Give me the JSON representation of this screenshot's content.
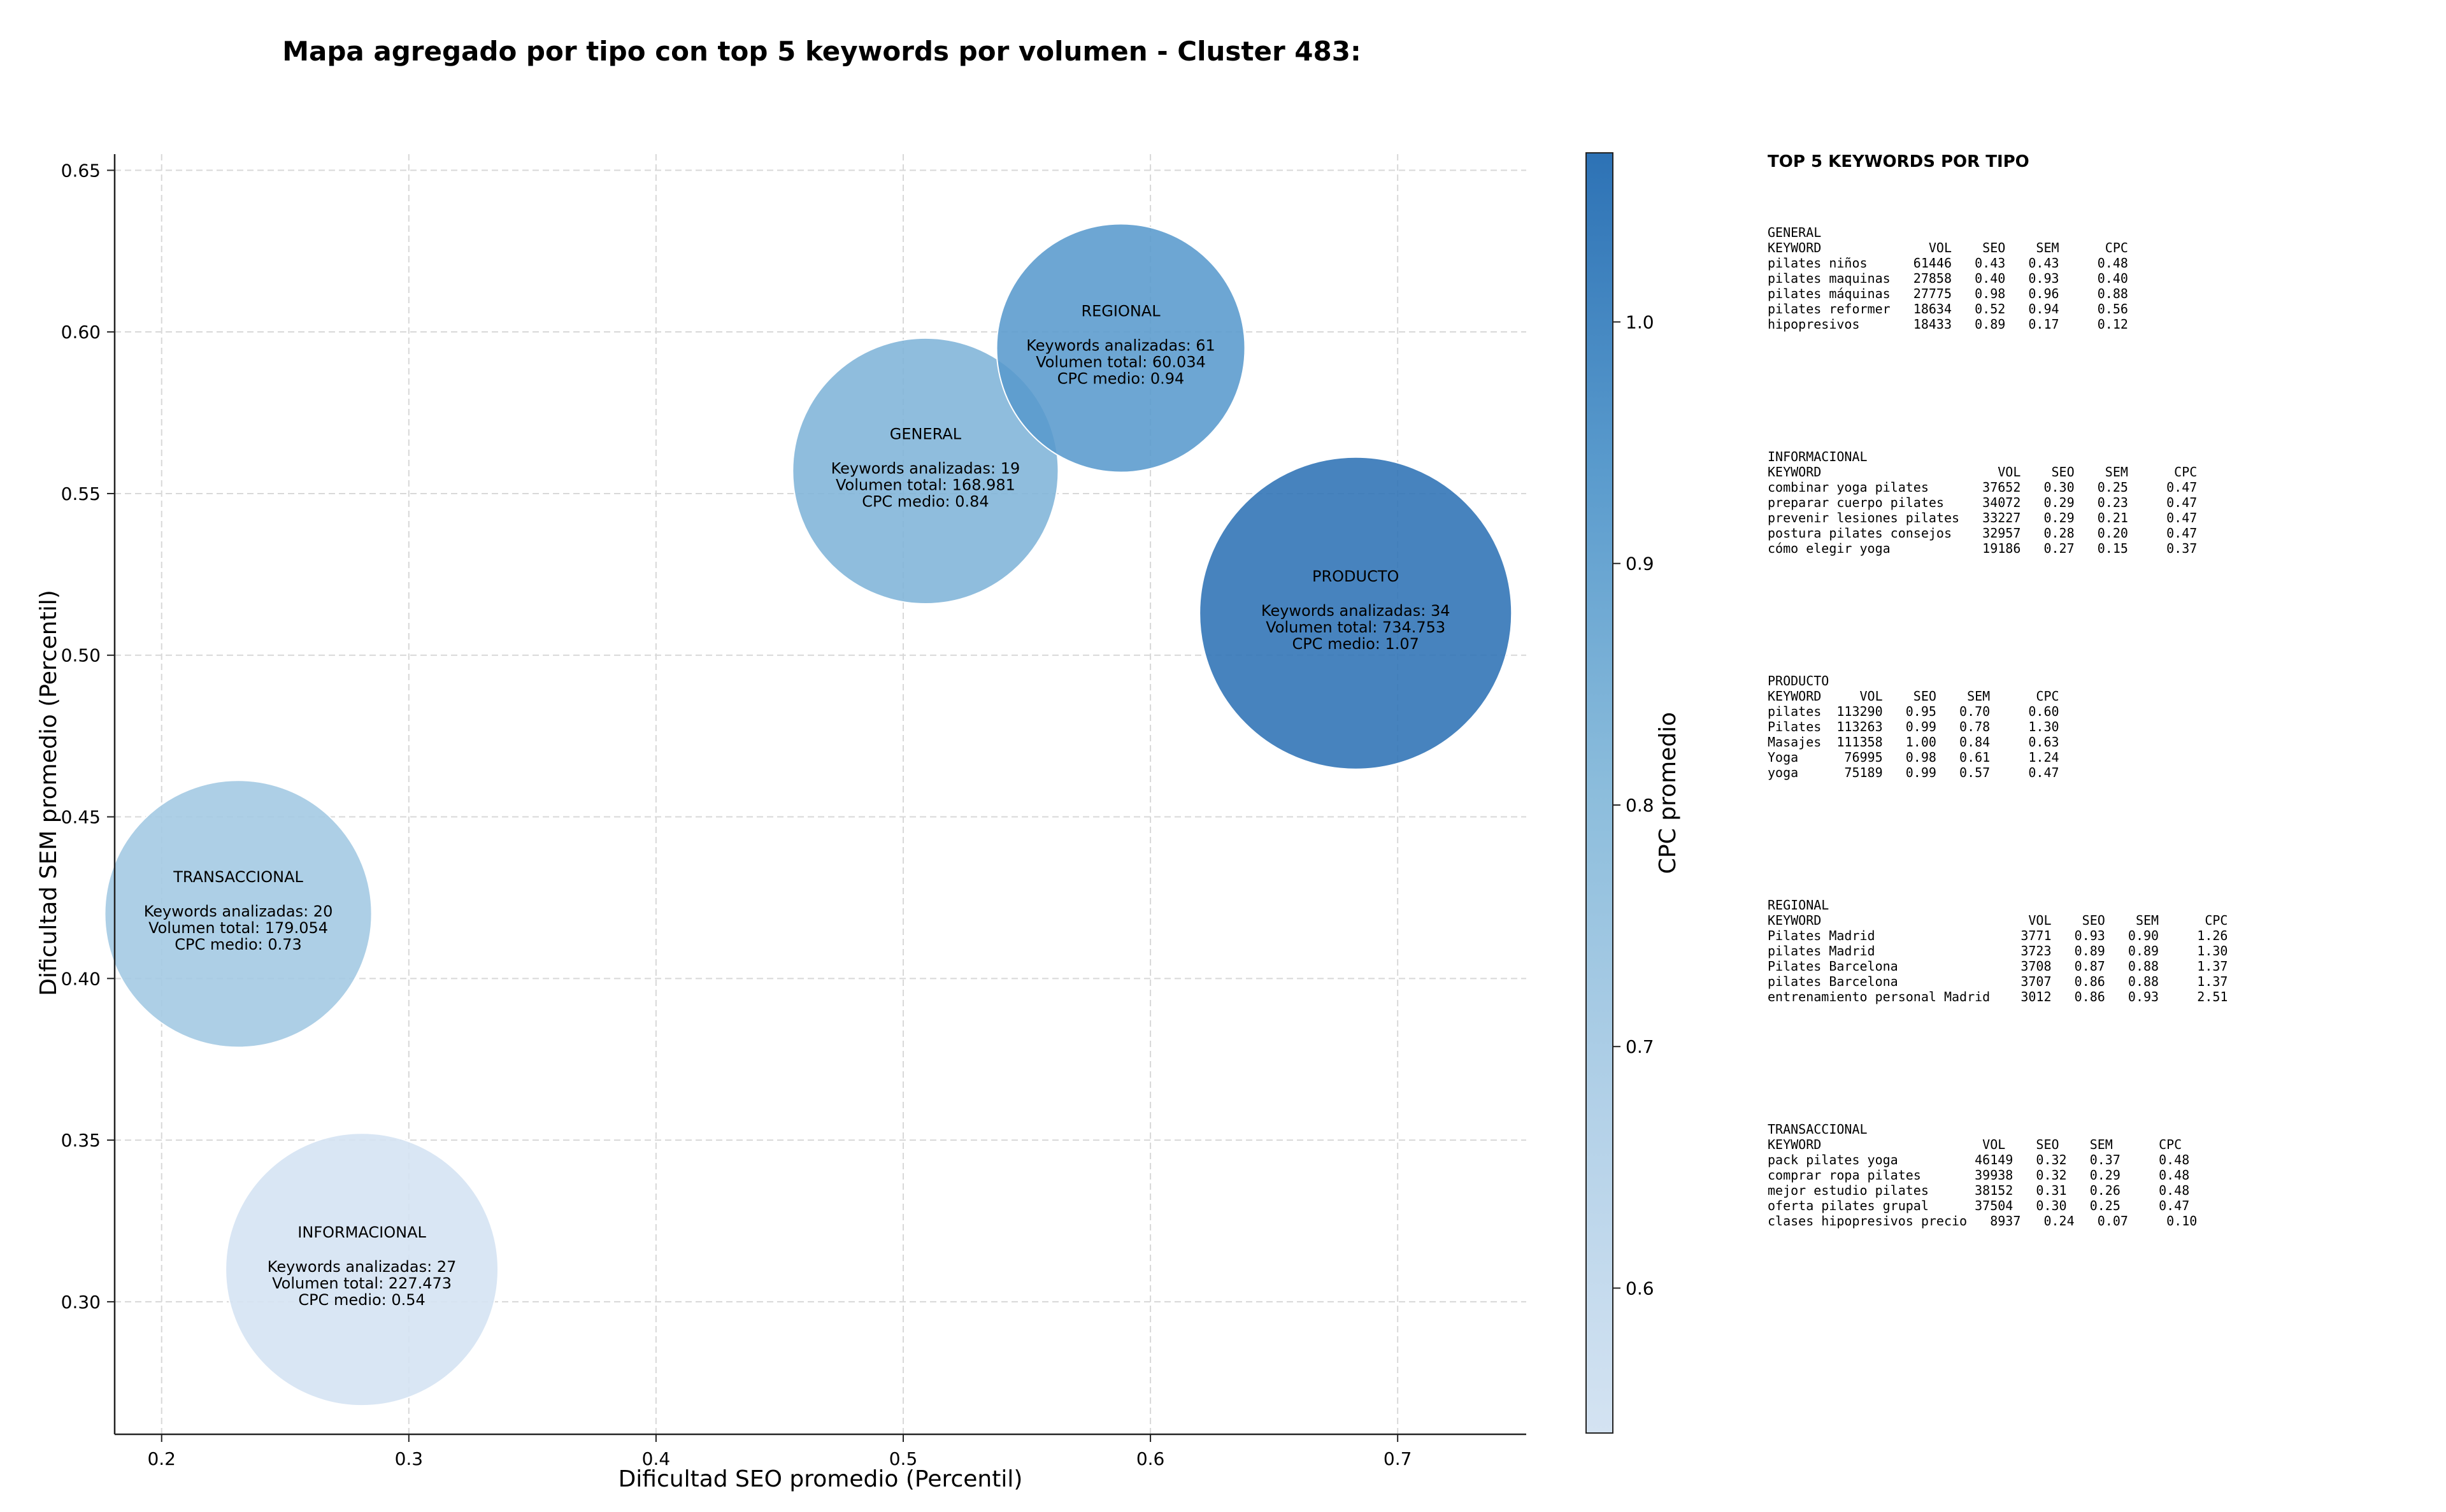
{
  "chart_data": {
    "type": "scatter",
    "title": "Mapa agregado por tipo con top 5 keywords por volumen - Cluster 483:",
    "xlabel": "Dificultad SEO promedio (Percentil)",
    "ylabel": "Dificultad SEM promedio (Percentil)",
    "xlim": [
      0.181,
      0.752
    ],
    "ylim": [
      0.259,
      0.655
    ],
    "x_ticks": [
      "0.2",
      "0.3",
      "0.4",
      "0.5",
      "0.6",
      "0.7"
    ],
    "y_ticks": [
      "0.30",
      "0.35",
      "0.40",
      "0.45",
      "0.50",
      "0.55",
      "0.60",
      "0.65"
    ],
    "grid": true,
    "colorbar": {
      "label": "CPC promedio",
      "range": [
        0.54,
        1.07
      ],
      "ticks": [
        "0.6",
        "0.7",
        "0.8",
        "0.9",
        "1.0"
      ],
      "colormap": "Blues"
    },
    "points": [
      {
        "name": "GENERAL",
        "x": 0.509,
        "y": 0.557,
        "keywords": 19,
        "volume": 168981,
        "cpc": 0.84,
        "lines": [
          "Keywords analizadas: 19",
          "Volumen total: 168.981",
          "CPC medio: 0.84"
        ]
      },
      {
        "name": "INFORMACIONAL",
        "x": 0.281,
        "y": 0.31,
        "keywords": 27,
        "volume": 227473,
        "cpc": 0.54,
        "lines": [
          "Keywords analizadas: 27",
          "Volumen total: 227.473",
          "CPC medio: 0.54"
        ]
      },
      {
        "name": "PRODUCTO",
        "x": 0.683,
        "y": 0.513,
        "keywords": 34,
        "volume": 734753,
        "cpc": 1.07,
        "lines": [
          "Keywords analizadas: 34",
          "Volumen total: 734.753",
          "CPC medio: 1.07"
        ]
      },
      {
        "name": "REGIONAL",
        "x": 0.588,
        "y": 0.595,
        "keywords": 61,
        "volume": 60034,
        "cpc": 0.94,
        "lines": [
          "Keywords analizadas: 61",
          "Volumen total: 60.034",
          "CPC medio: 0.94"
        ]
      },
      {
        "name": "TRANSACCIONAL",
        "x": 0.231,
        "y": 0.42,
        "keywords": 20,
        "volume": 179054,
        "cpc": 0.73,
        "lines": [
          "Keywords analizadas: 20",
          "Volumen total: 179.054",
          "CPC medio: 0.73"
        ]
      }
    ]
  },
  "side_panel": {
    "title": "TOP 5 KEYWORDS POR TIPO",
    "sections": [
      {
        "type": "GENERAL",
        "header": "KEYWORD              VOL    SEO    SEM      CPC",
        "rows": [
          "pilates niños      61446   0.43   0.43     0.48",
          "pilates maquinas   27858   0.40   0.93     0.40",
          "pilates máquinas   27775   0.98   0.96     0.88",
          "pilates reformer   18634   0.52   0.94     0.56",
          "hipopresivos       18433   0.89   0.17     0.12"
        ]
      },
      {
        "type": "INFORMACIONAL",
        "header": "KEYWORD                       VOL    SEO    SEM      CPC",
        "rows": [
          "combinar yoga pilates       37652   0.30   0.25     0.47",
          "preparar cuerpo pilates     34072   0.29   0.23     0.47",
          "prevenir lesiones pilates   33227   0.29   0.21     0.47",
          "postura pilates consejos    32957   0.28   0.20     0.47",
          "cómo elegir yoga            19186   0.27   0.15     0.37"
        ]
      },
      {
        "type": "PRODUCTO",
        "header": "KEYWORD     VOL    SEO    SEM      CPC",
        "rows": [
          "pilates  113290   0.95   0.70     0.60",
          "Pilates  113263   0.99   0.78     1.30",
          "Masajes  111358   1.00   0.84     0.63",
          "Yoga      76995   0.98   0.61     1.24",
          "yoga      75189   0.99   0.57     0.47"
        ]
      },
      {
        "type": "REGIONAL",
        "header": "KEYWORD                           VOL    SEO    SEM      CPC",
        "rows": [
          "Pilates Madrid                   3771   0.93   0.90     1.26",
          "pilates Madrid                   3723   0.89   0.89     1.30",
          "Pilates Barcelona                3708   0.87   0.88     1.37",
          "pilates Barcelona                3707   0.86   0.88     1.37",
          "entrenamiento personal Madrid    3012   0.86   0.93     2.51"
        ]
      },
      {
        "type": "TRANSACCIONAL",
        "header": "KEYWORD                     VOL    SEO    SEM      CPC",
        "rows": [
          "pack pilates yoga          46149   0.32   0.37     0.48",
          "comprar ropa pilates       39938   0.32   0.29     0.48",
          "mejor estudio pilates      38152   0.31   0.26     0.48",
          "oferta pilates grupal      37504   0.30   0.25     0.47",
          "clases hipopresivos precio   8937   0.24   0.07     0.10"
        ]
      }
    ]
  }
}
